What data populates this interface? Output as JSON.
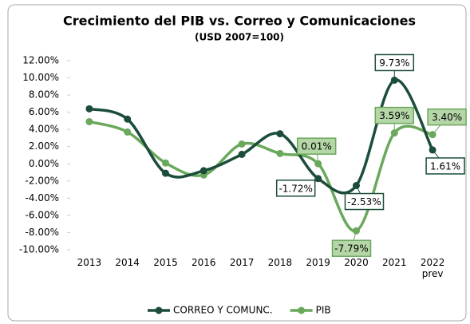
{
  "chart_data": {
    "type": "line",
    "title": "Crecimiento del PIB vs. Correo y Comunicaciones",
    "subtitle": "(USD 2007=100)",
    "categories": [
      "2013",
      "2014",
      "2015",
      "2016",
      "2017",
      "2018",
      "2019",
      "2020",
      "2021",
      "2022 prev"
    ],
    "series": [
      {
        "name": "CORREO Y COMUNC.",
        "color": "#1b4d3a",
        "values": [
          6.4,
          5.2,
          -1.1,
          -0.8,
          1.1,
          3.5,
          -1.72,
          -2.53,
          9.73,
          1.61
        ],
        "value_labels": [
          null,
          null,
          null,
          null,
          null,
          null,
          "-1.72%",
          "-2.53%",
          "9.73%",
          "1.61%"
        ]
      },
      {
        "name": "PIB",
        "color": "#6aa85c",
        "values": [
          4.9,
          3.7,
          0.1,
          -1.3,
          2.3,
          1.2,
          0.01,
          -7.79,
          3.59,
          3.4
        ],
        "value_labels": [
          null,
          null,
          null,
          null,
          null,
          null,
          "0.01%",
          "-7.79%",
          "3.59%",
          "3.40%"
        ]
      }
    ],
    "ylim": [
      -10,
      12
    ],
    "yticks": [
      {
        "value": -10,
        "label": "-10.00%"
      },
      {
        "value": -8,
        "label": "-8.00%"
      },
      {
        "value": -6,
        "label": "-6.00%"
      },
      {
        "value": -4,
        "label": "-4.00%"
      },
      {
        "value": -2,
        "label": "-2.00%"
      },
      {
        "value": 0,
        "label": "0.00%"
      },
      {
        "value": 2,
        "label": "2.00%"
      },
      {
        "value": 4,
        "label": "4.00%"
      },
      {
        "value": 6,
        "label": "6.00%"
      },
      {
        "value": 8,
        "label": "8.00%"
      },
      {
        "value": 10,
        "label": "10.00%"
      },
      {
        "value": 12,
        "label": "12.00%"
      }
    ],
    "grid": false,
    "legend": "bottom"
  }
}
